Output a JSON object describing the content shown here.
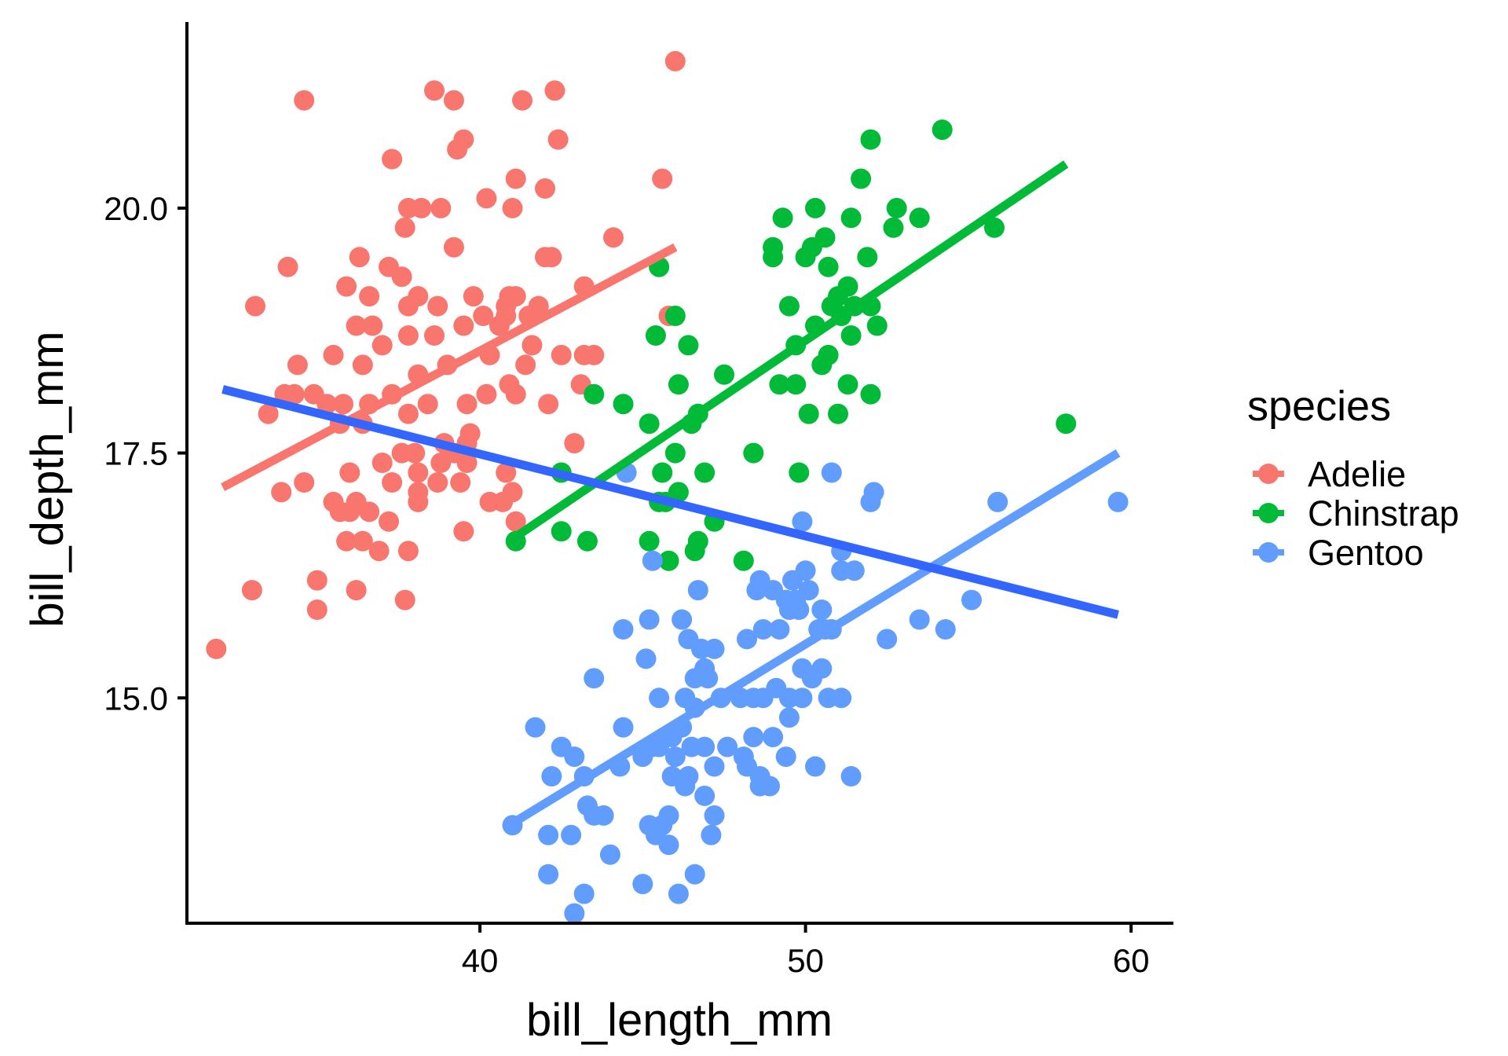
{
  "chart_data": {
    "type": "scatter",
    "title": "",
    "xlabel": "bill_length_mm",
    "ylabel": "bill_depth_mm",
    "xlim": [
      31,
      61.3
    ],
    "ylim": [
      12.7,
      21.9
    ],
    "x_ticks": [
      40,
      50,
      60
    ],
    "y_ticks": [
      15.0,
      17.5,
      20.0
    ],
    "x_tick_labels": [
      "40",
      "50",
      "60"
    ],
    "y_tick_labels": [
      "15.0",
      "17.5",
      "20.0"
    ],
    "grid": false,
    "legend": {
      "title": "species",
      "position": "right"
    },
    "series": [
      {
        "name": "Adelie",
        "color": "#F8766D",
        "points": [
          [
            46.0,
            21.5
          ],
          [
            34.6,
            21.1
          ],
          [
            38.6,
            21.2
          ],
          [
            39.2,
            21.1
          ],
          [
            41.3,
            21.1
          ],
          [
            42.3,
            21.2
          ],
          [
            39.5,
            20.7
          ],
          [
            39.3,
            20.6
          ],
          [
            42.4,
            20.7
          ],
          [
            37.3,
            20.5
          ],
          [
            41.1,
            20.3
          ],
          [
            45.6,
            20.3
          ],
          [
            42.0,
            20.2
          ],
          [
            40.2,
            20.1
          ],
          [
            41.0,
            20.0
          ],
          [
            37.8,
            20.0
          ],
          [
            38.2,
            20.0
          ],
          [
            38.8,
            20.0
          ],
          [
            37.7,
            19.8
          ],
          [
            39.2,
            19.6
          ],
          [
            44.1,
            19.7
          ],
          [
            45.8,
            18.9
          ],
          [
            42.2,
            19.5
          ],
          [
            42.0,
            19.5
          ],
          [
            36.3,
            19.5
          ],
          [
            34.1,
            19.4
          ],
          [
            37.2,
            19.4
          ],
          [
            37.6,
            19.3
          ],
          [
            35.9,
            19.2
          ],
          [
            36.6,
            19.1
          ],
          [
            38.1,
            19.1
          ],
          [
            38.7,
            19.0
          ],
          [
            40.8,
            19.0
          ],
          [
            36.2,
            18.8
          ],
          [
            37.8,
            19.0
          ],
          [
            39.8,
            19.1
          ],
          [
            40.9,
            19.1
          ],
          [
            41.1,
            19.1
          ],
          [
            41.8,
            19.0
          ],
          [
            43.2,
            19.2
          ],
          [
            33.1,
            19.0
          ],
          [
            34.4,
            18.4
          ],
          [
            34.9,
            18.1
          ],
          [
            35.5,
            18.5
          ],
          [
            36.4,
            18.4
          ],
          [
            37.0,
            18.6
          ],
          [
            36.7,
            18.8
          ],
          [
            37.8,
            18.7
          ],
          [
            38.6,
            18.7
          ],
          [
            39.5,
            18.8
          ],
          [
            40.1,
            18.9
          ],
          [
            40.8,
            18.9
          ],
          [
            41.5,
            18.9
          ],
          [
            42.5,
            18.5
          ],
          [
            43.2,
            18.5
          ],
          [
            43.5,
            18.5
          ],
          [
            40.6,
            18.8
          ],
          [
            40.3,
            18.5
          ],
          [
            41.6,
            18.6
          ],
          [
            40.9,
            18.2
          ],
          [
            39.0,
            18.4
          ],
          [
            38.1,
            18.3
          ],
          [
            37.3,
            18.1
          ],
          [
            36.6,
            18.0
          ],
          [
            35.8,
            18.0
          ],
          [
            35.3,
            18.0
          ],
          [
            34.3,
            18.1
          ],
          [
            34.0,
            18.1
          ],
          [
            33.5,
            17.9
          ],
          [
            34.6,
            17.2
          ],
          [
            35.7,
            17.8
          ],
          [
            36.4,
            17.8
          ],
          [
            37.8,
            17.9
          ],
          [
            38.4,
            18.0
          ],
          [
            39.6,
            18.0
          ],
          [
            40.2,
            18.1
          ],
          [
            41.1,
            18.1
          ],
          [
            42.1,
            18.0
          ],
          [
            43.1,
            18.2
          ],
          [
            41.4,
            18.4
          ],
          [
            39.7,
            17.7
          ],
          [
            38.9,
            17.6
          ],
          [
            38.0,
            17.5
          ],
          [
            37.0,
            17.4
          ],
          [
            36.0,
            17.3
          ],
          [
            35.5,
            17.0
          ],
          [
            35.7,
            16.9
          ],
          [
            36.0,
            16.9
          ],
          [
            36.2,
            17.0
          ],
          [
            36.6,
            16.9
          ],
          [
            37.2,
            16.8
          ],
          [
            38.1,
            17.1
          ],
          [
            38.7,
            17.2
          ],
          [
            39.4,
            17.2
          ],
          [
            40.3,
            17.0
          ],
          [
            40.8,
            17.3
          ],
          [
            41.1,
            16.8
          ],
          [
            42.9,
            17.6
          ],
          [
            39.6,
            17.6
          ],
          [
            39.6,
            17.4
          ],
          [
            38.1,
            17.0
          ],
          [
            37.3,
            17.2
          ],
          [
            36.4,
            16.6
          ],
          [
            35.9,
            16.6
          ],
          [
            36.9,
            16.5
          ],
          [
            37.8,
            16.5
          ],
          [
            39.5,
            16.7
          ],
          [
            33.0,
            16.1
          ],
          [
            35.0,
            16.2
          ],
          [
            36.2,
            16.1
          ],
          [
            35.0,
            15.9
          ],
          [
            37.7,
            16.0
          ],
          [
            31.9,
            15.5
          ],
          [
            33.9,
            17.1
          ],
          [
            41.0,
            17.1
          ],
          [
            40.7,
            17.0
          ],
          [
            38.8,
            17.4
          ],
          [
            38.1,
            17.3
          ],
          [
            37.6,
            17.5
          ],
          [
            39.2,
            17.5
          ]
        ]
      },
      {
        "name": "Chinstrap",
        "color": "#00BA38",
        "points": [
          [
            54.2,
            20.8
          ],
          [
            52.0,
            20.7
          ],
          [
            51.7,
            20.3
          ],
          [
            49.3,
            19.9
          ],
          [
            50.3,
            20.0
          ],
          [
            51.4,
            19.9
          ],
          [
            52.8,
            20.0
          ],
          [
            53.5,
            19.9
          ],
          [
            55.8,
            19.8
          ],
          [
            52.7,
            19.8
          ],
          [
            50.6,
            19.7
          ],
          [
            50.2,
            19.6
          ],
          [
            49.0,
            19.6
          ],
          [
            49.0,
            19.5
          ],
          [
            50.0,
            19.5
          ],
          [
            50.7,
            19.4
          ],
          [
            51.9,
            19.5
          ],
          [
            45.5,
            19.4
          ],
          [
            51.3,
            19.2
          ],
          [
            51.0,
            19.1
          ],
          [
            50.8,
            19.0
          ],
          [
            51.1,
            18.9
          ],
          [
            51.5,
            19.0
          ],
          [
            52.0,
            19.0
          ],
          [
            49.5,
            19.0
          ],
          [
            46.0,
            18.9
          ],
          [
            50.3,
            18.8
          ],
          [
            52.2,
            18.8
          ],
          [
            45.4,
            18.7
          ],
          [
            49.7,
            18.6
          ],
          [
            51.4,
            18.7
          ],
          [
            46.4,
            18.6
          ],
          [
            50.7,
            18.5
          ],
          [
            50.5,
            18.4
          ],
          [
            47.5,
            18.3
          ],
          [
            43.5,
            18.1
          ],
          [
            46.1,
            18.2
          ],
          [
            49.2,
            18.2
          ],
          [
            49.7,
            18.2
          ],
          [
            51.3,
            18.2
          ],
          [
            52.0,
            18.1
          ],
          [
            44.4,
            18.0
          ],
          [
            46.7,
            17.9
          ],
          [
            50.1,
            17.9
          ],
          [
            51.0,
            17.9
          ],
          [
            58.0,
            17.8
          ],
          [
            45.2,
            17.8
          ],
          [
            46.5,
            17.8
          ],
          [
            46.0,
            17.5
          ],
          [
            48.4,
            17.5
          ],
          [
            42.5,
            17.3
          ],
          [
            45.6,
            17.3
          ],
          [
            46.9,
            17.3
          ],
          [
            49.8,
            17.3
          ],
          [
            45.5,
            17.0
          ],
          [
            45.7,
            17.0
          ],
          [
            46.1,
            17.1
          ],
          [
            47.2,
            16.8
          ],
          [
            42.5,
            16.7
          ],
          [
            41.1,
            16.6
          ],
          [
            43.3,
            16.6
          ],
          [
            45.2,
            16.6
          ],
          [
            46.7,
            16.6
          ],
          [
            46.6,
            16.5
          ],
          [
            45.8,
            16.4
          ],
          [
            48.1,
            16.4
          ]
        ]
      },
      {
        "name": "Gentoo",
        "color": "#619CFF",
        "points": [
          [
            59.6,
            17.0
          ],
          [
            55.9,
            17.0
          ],
          [
            52.1,
            17.1
          ],
          [
            52.0,
            17.0
          ],
          [
            50.8,
            17.3
          ],
          [
            44.5,
            17.3
          ],
          [
            49.9,
            16.8
          ],
          [
            51.1,
            16.5
          ],
          [
            51.5,
            16.3
          ],
          [
            51.1,
            16.3
          ],
          [
            50.0,
            16.3
          ],
          [
            48.6,
            16.2
          ],
          [
            49.0,
            16.1
          ],
          [
            49.6,
            16.2
          ],
          [
            48.5,
            16.1
          ],
          [
            49.4,
            16.0
          ],
          [
            49.7,
            16.0
          ],
          [
            49.8,
            15.9
          ],
          [
            50.1,
            16.1
          ],
          [
            46.7,
            16.1
          ],
          [
            45.3,
            16.4
          ],
          [
            55.1,
            16.0
          ],
          [
            53.5,
            15.8
          ],
          [
            54.3,
            15.7
          ],
          [
            52.5,
            15.6
          ],
          [
            44.4,
            15.7
          ],
          [
            45.2,
            15.8
          ],
          [
            46.2,
            15.8
          ],
          [
            46.4,
            15.6
          ],
          [
            48.2,
            15.6
          ],
          [
            48.7,
            15.7
          ],
          [
            49.2,
            15.7
          ],
          [
            49.5,
            15.9
          ],
          [
            50.4,
            15.7
          ],
          [
            50.6,
            15.7
          ],
          [
            50.8,
            15.7
          ],
          [
            50.5,
            15.9
          ],
          [
            45.1,
            15.4
          ],
          [
            46.8,
            15.5
          ],
          [
            47.2,
            15.5
          ],
          [
            46.9,
            15.3
          ],
          [
            46.6,
            15.2
          ],
          [
            47.0,
            15.2
          ],
          [
            43.5,
            15.2
          ],
          [
            49.9,
            15.3
          ],
          [
            50.5,
            15.3
          ],
          [
            50.2,
            15.2
          ],
          [
            45.5,
            15.0
          ],
          [
            46.3,
            15.0
          ],
          [
            46.6,
            14.9
          ],
          [
            47.4,
            15.0
          ],
          [
            48.0,
            15.0
          ],
          [
            48.4,
            15.0
          ],
          [
            48.7,
            15.0
          ],
          [
            49.1,
            15.1
          ],
          [
            49.5,
            15.0
          ],
          [
            49.9,
            15.0
          ],
          [
            50.7,
            15.0
          ],
          [
            51.1,
            15.0
          ],
          [
            49.5,
            14.8
          ],
          [
            46.2,
            14.7
          ],
          [
            45.9,
            14.6
          ],
          [
            45.3,
            14.5
          ],
          [
            44.4,
            14.7
          ],
          [
            41.7,
            14.7
          ],
          [
            42.5,
            14.5
          ],
          [
            42.9,
            14.4
          ],
          [
            45.0,
            14.4
          ],
          [
            45.5,
            14.5
          ],
          [
            46.0,
            14.4
          ],
          [
            46.5,
            14.5
          ],
          [
            46.9,
            14.5
          ],
          [
            47.6,
            14.5
          ],
          [
            48.4,
            14.6
          ],
          [
            49.0,
            14.6
          ],
          [
            49.4,
            14.4
          ],
          [
            48.1,
            14.4
          ],
          [
            48.2,
            14.3
          ],
          [
            44.3,
            14.3
          ],
          [
            46.4,
            14.2
          ],
          [
            47.2,
            14.3
          ],
          [
            48.6,
            14.2
          ],
          [
            50.3,
            14.3
          ],
          [
            51.4,
            14.2
          ],
          [
            42.2,
            14.2
          ],
          [
            43.2,
            14.2
          ],
          [
            45.9,
            14.2
          ],
          [
            46.3,
            14.1
          ],
          [
            46.9,
            14.0
          ],
          [
            48.6,
            14.1
          ],
          [
            48.9,
            14.1
          ],
          [
            43.3,
            13.9
          ],
          [
            43.5,
            13.8
          ],
          [
            43.8,
            13.8
          ],
          [
            47.2,
            13.8
          ],
          [
            45.2,
            13.7
          ],
          [
            45.6,
            13.7
          ],
          [
            45.8,
            13.8
          ],
          [
            47.1,
            13.6
          ],
          [
            45.8,
            13.5
          ],
          [
            45.4,
            13.6
          ],
          [
            42.1,
            13.6
          ],
          [
            42.8,
            13.6
          ],
          [
            41.0,
            13.7
          ],
          [
            44.0,
            13.4
          ],
          [
            42.1,
            13.2
          ],
          [
            43.2,
            13.0
          ],
          [
            45.0,
            13.1
          ],
          [
            46.6,
            13.2
          ],
          [
            46.1,
            13.0
          ],
          [
            42.9,
            12.8
          ]
        ]
      }
    ],
    "regression_lines": [
      {
        "name": "Adelie",
        "color": "#F8766D",
        "from": [
          32.1,
          17.15
        ],
        "to": [
          46.0,
          19.6
        ]
      },
      {
        "name": "Chinstrap",
        "color": "#00BA38",
        "from": [
          40.9,
          16.6
        ],
        "to": [
          58.0,
          20.45
        ]
      },
      {
        "name": "Gentoo",
        "color": "#619CFF",
        "from": [
          40.9,
          13.7
        ],
        "to": [
          59.6,
          17.5
        ]
      },
      {
        "name": "overall",
        "color": "#3366FF",
        "from": [
          32.1,
          18.15
        ],
        "to": [
          59.6,
          15.85
        ]
      }
    ]
  }
}
